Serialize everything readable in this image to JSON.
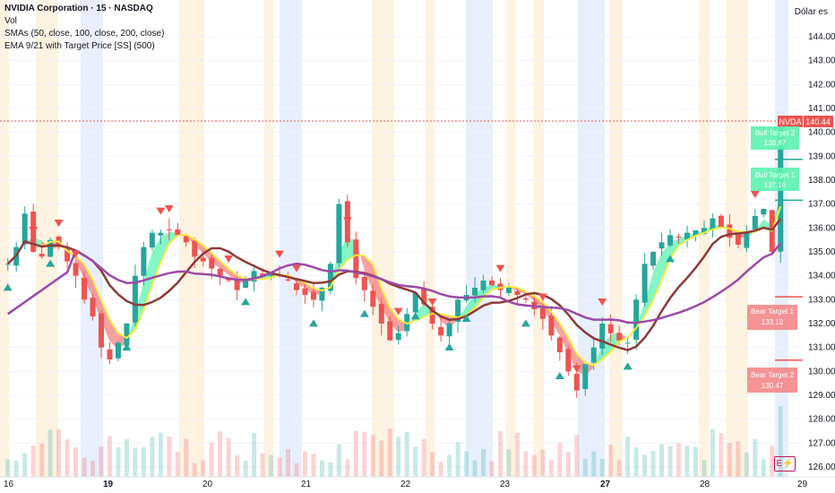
{
  "header": {
    "symbol_line": "NVIDIA Corporation · 15 · NASDAQ",
    "vol": "Vol",
    "smas": "SMAs (50, close, 100, close, 200, close)",
    "ema": "EMA 9/21 with Target Price [SS] (500)",
    "currency": "Dólar es"
  },
  "price_axis": {
    "ticks": [
      "144.00",
      "143.00",
      "142.00",
      "141.00",
      "140.00",
      "139.00",
      "138.00",
      "137.00",
      "136.00",
      "135.00",
      "134.00",
      "133.00",
      "132.00",
      "131.00",
      "130.00",
      "129.00",
      "128.00",
      "127.00",
      "126.00"
    ],
    "current_tag": "NVDA",
    "current_price": "140.44"
  },
  "time_axis": {
    "labels": [
      "16",
      "19",
      "20",
      "21",
      "22",
      "23",
      "27",
      "28",
      "29"
    ]
  },
  "targets": {
    "bull2_label": "Bull Target 2",
    "bull2_value": "138.87",
    "bull1_label": "Bull Target 1",
    "bull1_value": "137.16",
    "bear1_label": "Bear Target 1",
    "bear1_value": "133.12",
    "bear2_label": "Bear Target 2",
    "bear2_value": "130.47"
  },
  "icons": {
    "e_icon": "E⚡"
  },
  "colors": {
    "up": "#26a69a",
    "down": "#ef5350",
    "sma50": "#f5ec42",
    "sma100": "#8d3a3a",
    "sma200": "#9c4aa8",
    "bull_fill": "#5cf2b0",
    "bear_fill": "#f48080"
  },
  "chart_data": {
    "type": "candlestick",
    "y_axis_range": [
      126,
      144.6
    ],
    "price_series_approx": [
      134.5,
      135.2,
      136.6,
      135.0,
      134.8,
      135.5,
      135.3,
      134.6,
      134.0,
      133.0,
      132.3,
      131.0,
      130.5,
      131.2,
      132.0,
      134.0,
      135.2,
      135.8,
      135.8,
      135.9,
      135.7,
      135.4,
      134.8,
      134.6,
      134.3,
      134.0,
      133.8,
      133.4,
      133.9,
      134.2,
      134.0,
      134.1,
      134.0,
      133.8,
      133.4,
      133.2,
      133.0,
      133.5,
      134.5,
      137.0,
      135.4,
      133.9,
      133.4,
      132.7,
      132.0,
      131.3,
      131.6,
      132.4,
      133.3,
      132.8,
      132.0,
      131.5,
      132.0,
      133.0,
      133.2,
      133.5,
      133.8,
      133.6,
      133.4,
      133.5,
      133.2,
      133.0,
      132.6,
      132.2,
      131.5,
      130.8,
      130.0,
      129.2,
      130.3,
      131.0,
      132.0,
      131.6,
      131.3,
      131.2,
      133.0,
      134.5,
      135.0,
      135.4,
      135.7,
      135.6,
      135.8,
      135.9,
      136.0,
      136.4,
      136.0,
      135.6,
      135.3,
      135.8,
      136.5,
      136.8,
      135.0,
      140.4
    ]
  }
}
